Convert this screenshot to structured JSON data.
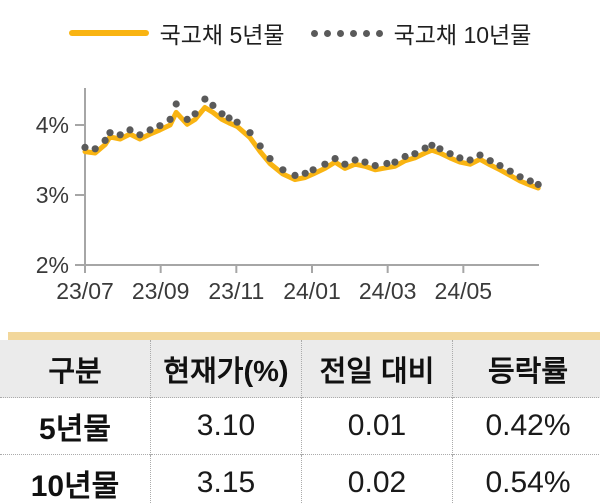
{
  "colors": {
    "line_5yr": "#F9B412",
    "dots_10yr": "#5A5A5A",
    "axis": "#A6A6A6",
    "table_top_bar": "#F2D79B",
    "table_header_bg": "#EBEBEB"
  },
  "chart_data": {
    "type": "line",
    "title": "",
    "xlabel": "",
    "ylabel": "",
    "ylim": [
      2,
      4.55
    ],
    "x_range": [
      0,
      12
    ],
    "grid": false,
    "legend_position": "top",
    "y_ticks": [
      4,
      3,
      2
    ],
    "y_tick_labels": [
      "4%",
      "3%",
      "2%"
    ],
    "x_ticks": [
      0,
      2,
      4,
      6,
      8,
      10
    ],
    "x_tick_labels": [
      "23/07",
      "23/09",
      "23/11",
      "24/01",
      "24/03",
      "24/05"
    ],
    "series": [
      {
        "name": "국고채 5년물",
        "style": "solid",
        "color": "#F9B412",
        "x": [
          0.0,
          0.27,
          0.53,
          0.66,
          0.93,
          1.19,
          1.45,
          1.72,
          1.98,
          2.25,
          2.41,
          2.7,
          2.91,
          3.17,
          3.38,
          3.62,
          3.81,
          4.02,
          4.36,
          4.63,
          4.89,
          5.23,
          5.55,
          5.82,
          6.03,
          6.34,
          6.61,
          6.87,
          7.14,
          7.4,
          7.67,
          7.98,
          8.19,
          8.46,
          8.72,
          8.99,
          9.17,
          9.38,
          9.65,
          9.91,
          10.18,
          10.44,
          10.71,
          10.97,
          11.24,
          11.5,
          11.77,
          11.98
        ],
        "values": [
          3.62,
          3.6,
          3.72,
          3.83,
          3.8,
          3.87,
          3.8,
          3.87,
          3.93,
          4.0,
          4.18,
          4.01,
          4.08,
          4.25,
          4.18,
          4.08,
          4.03,
          3.98,
          3.82,
          3.62,
          3.45,
          3.3,
          3.22,
          3.25,
          3.3,
          3.38,
          3.47,
          3.38,
          3.44,
          3.41,
          3.36,
          3.39,
          3.41,
          3.49,
          3.53,
          3.6,
          3.64,
          3.6,
          3.53,
          3.47,
          3.44,
          3.51,
          3.43,
          3.36,
          3.28,
          3.2,
          3.14,
          3.1
        ]
      },
      {
        "name": "국고채 10년물",
        "style": "dotted",
        "color": "#5A5A5A",
        "x": [
          0.0,
          0.27,
          0.53,
          0.66,
          0.93,
          1.19,
          1.45,
          1.72,
          1.98,
          2.25,
          2.41,
          2.7,
          2.91,
          3.17,
          3.38,
          3.62,
          3.81,
          4.02,
          4.36,
          4.63,
          4.89,
          5.23,
          5.55,
          5.82,
          6.03,
          6.34,
          6.61,
          6.87,
          7.14,
          7.4,
          7.67,
          7.98,
          8.19,
          8.46,
          8.72,
          8.99,
          9.17,
          9.38,
          9.65,
          9.91,
          10.18,
          10.44,
          10.71,
          10.97,
          11.24,
          11.5,
          11.77,
          11.98
        ],
        "values": [
          3.68,
          3.66,
          3.78,
          3.89,
          3.86,
          3.93,
          3.86,
          3.93,
          3.99,
          4.08,
          4.3,
          4.08,
          4.16,
          4.37,
          4.28,
          4.16,
          4.1,
          4.04,
          3.89,
          3.7,
          3.52,
          3.36,
          3.28,
          3.31,
          3.36,
          3.44,
          3.52,
          3.44,
          3.5,
          3.47,
          3.42,
          3.45,
          3.47,
          3.55,
          3.59,
          3.67,
          3.71,
          3.66,
          3.59,
          3.53,
          3.5,
          3.57,
          3.49,
          3.42,
          3.34,
          3.26,
          3.2,
          3.15
        ]
      }
    ]
  },
  "table": {
    "columns": [
      "구분",
      "현재가(%)",
      "전일 대비",
      "등락률"
    ],
    "rows": [
      [
        "5년물",
        "3.10",
        "0.01",
        "0.42%"
      ],
      [
        "10년물",
        "3.15",
        "0.02",
        "0.54%"
      ]
    ]
  }
}
